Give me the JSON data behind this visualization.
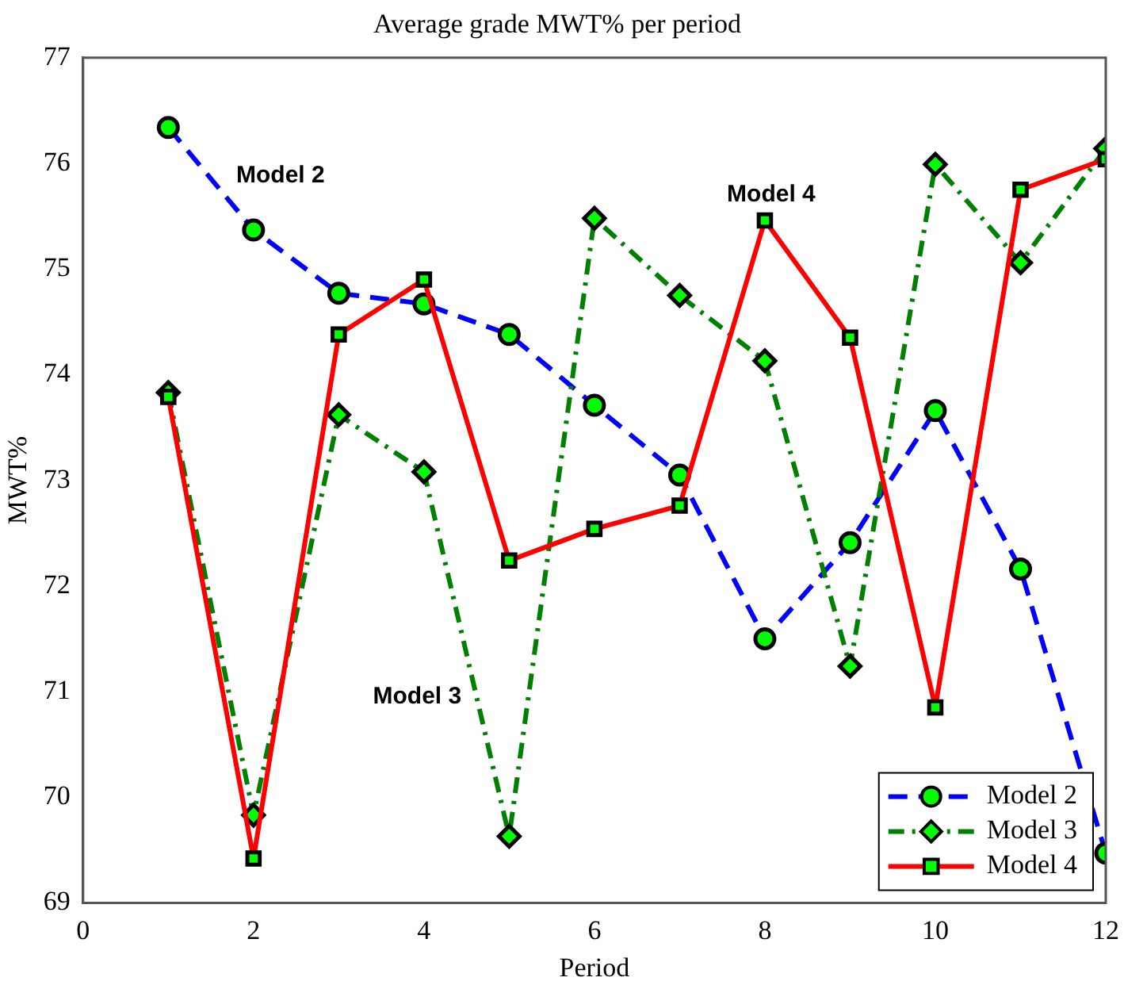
{
  "chart_data": {
    "type": "line",
    "title": "Average grade MWT% per period",
    "xlabel": "Period",
    "ylabel": "MWT%",
    "x": [
      1,
      2,
      3,
      4,
      5,
      6,
      7,
      8,
      9,
      10,
      11,
      12
    ],
    "series": [
      {
        "name": "Model 2",
        "color": "#0000ff",
        "marker": "circle",
        "line_style": "dashed",
        "values": [
          76.34,
          75.37,
          74.77,
          74.67,
          74.38,
          73.71,
          73.05,
          71.5,
          72.41,
          73.66,
          72.16,
          69.47
        ]
      },
      {
        "name": "Model 3",
        "color": "#008000",
        "marker": "diamond",
        "line_style": "dashdot",
        "values": [
          73.83,
          69.83,
          73.62,
          73.08,
          69.63,
          75.48,
          74.75,
          74.13,
          71.24,
          75.99,
          75.06,
          76.14
        ]
      },
      {
        "name": "Model 4",
        "color": "#ff0000",
        "marker": "square",
        "line_style": "solid",
        "values": [
          73.79,
          69.42,
          74.38,
          74.9,
          72.24,
          72.54,
          72.76,
          75.46,
          74.35,
          70.85,
          75.75,
          76.04
        ]
      }
    ],
    "xlim": [
      0,
      12
    ],
    "xticks": [
      0,
      2,
      4,
      6,
      8,
      10,
      12
    ],
    "ylim": [
      69,
      77
    ],
    "yticks": [
      69,
      70,
      71,
      72,
      73,
      74,
      75,
      76,
      77
    ],
    "grid": false,
    "legend": "bottom right"
  }
}
